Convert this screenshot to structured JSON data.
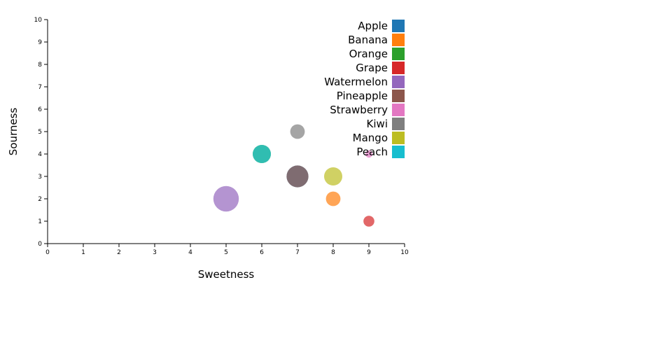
{
  "chart_data": {
    "type": "scatter",
    "subtype": "bubble",
    "xlabel": "Sweetness",
    "ylabel": "Sourness",
    "xlim": [
      0,
      10
    ],
    "ylim": [
      0,
      10
    ],
    "xticks": [
      0,
      1,
      2,
      3,
      4,
      5,
      6,
      7,
      8,
      9,
      10
    ],
    "yticks": [
      0,
      1,
      2,
      3,
      4,
      5,
      6,
      7,
      8,
      9,
      10
    ],
    "grid": false,
    "legend_position": "top-right",
    "series": [
      {
        "name": "Apple",
        "color": "#1f77b4",
        "x": 7,
        "y": 3,
        "size": 3
      },
      {
        "name": "Banana",
        "color": "#ff7f0e",
        "x": 8,
        "y": 2,
        "size": 2
      },
      {
        "name": "Orange",
        "color": "#2ca02c",
        "x": 6,
        "y": 4,
        "size": 2.5
      },
      {
        "name": "Grape",
        "color": "#d62728",
        "x": 9,
        "y": 1,
        "size": 1.5
      },
      {
        "name": "Watermelon",
        "color": "#9467bd",
        "x": 5,
        "y": 2,
        "size": 3.5
      },
      {
        "name": "Pineapple",
        "color": "#8c564b",
        "x": 7,
        "y": 3,
        "size": 3
      },
      {
        "name": "Strawberry",
        "color": "#e377c2",
        "x": 9,
        "y": 4,
        "size": 1
      },
      {
        "name": "Kiwi",
        "color": "#7f7f7f",
        "x": 7,
        "y": 5,
        "size": 2
      },
      {
        "name": "Mango",
        "color": "#bcbd22",
        "x": 8,
        "y": 3,
        "size": 2.5
      },
      {
        "name": "Peach",
        "color": "#17becf",
        "x": 6,
        "y": 4,
        "size": 2.5
      }
    ]
  }
}
